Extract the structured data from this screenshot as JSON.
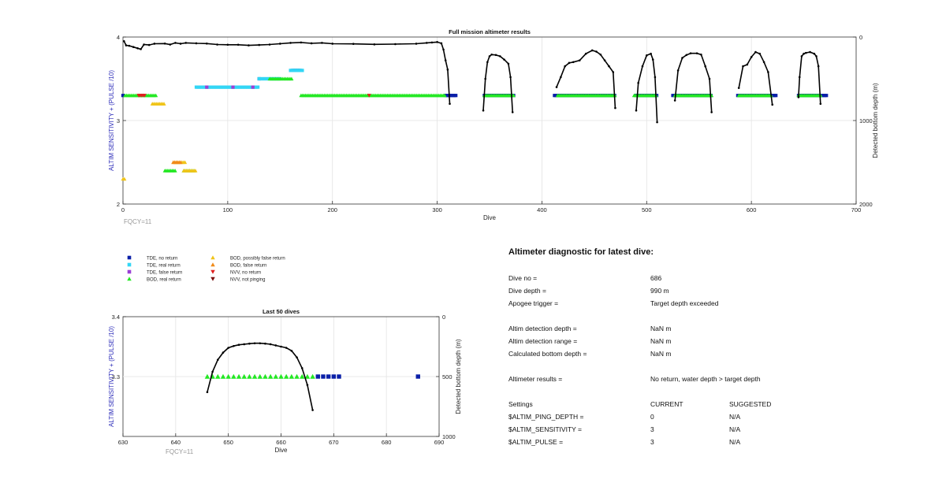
{
  "chart_data": [
    {
      "type": "scatter",
      "title": "Full mission altimeter results",
      "xlabel": "Dive",
      "ylabel": "ALTIM SENSITIVITY + (PULSE /10)",
      "y2label": "Detected bottom depth (m)",
      "xlim": [
        0,
        700
      ],
      "ylim": [
        2,
        4
      ],
      "y2lim": [
        0,
        2000
      ],
      "y2_reversed": true,
      "xticks": [
        "0",
        "100",
        "200",
        "300",
        "400",
        "500",
        "600",
        "700"
      ],
      "yticks": [
        "2",
        "3",
        "4"
      ],
      "y2ticks": [
        "0",
        "1000",
        "2000"
      ],
      "grid": true,
      "annotation": "FQCY=11",
      "series": [
        {
          "name": "TDE, no return",
          "color": "#0a1fa8",
          "marker": "square",
          "segments": [
            [
              0,
              1,
              3.3
            ],
            [
              130,
              131,
              3.5
            ],
            [
              162,
              170,
              3.6
            ],
            [
              308,
              318,
              3.3
            ],
            [
              345,
              374,
              3.3
            ],
            [
              412,
              470,
              3.3
            ],
            [
              490,
              510,
              3.3
            ],
            [
              525,
              562,
              3.3
            ],
            [
              587,
              624,
              3.3
            ],
            [
              645,
              672,
              3.3
            ]
          ]
        },
        {
          "name": "TDE, real return",
          "color": "#33d6f5",
          "marker": "square",
          "segments": [
            [
              70,
              130,
              3.4
            ],
            [
              130,
              150,
              3.5
            ],
            [
              160,
              172,
              3.6
            ]
          ]
        },
        {
          "name": "TDE, false return",
          "color": "#9a3fd6",
          "marker": "square",
          "segments": [
            [
              80,
              81,
              3.4
            ],
            [
              105,
              106,
              3.4
            ],
            [
              124,
              125,
              3.4
            ]
          ]
        },
        {
          "name": "BOD, real return",
          "color": "#23e823",
          "marker": "triangle",
          "segments": [
            [
              2,
              32,
              3.3
            ],
            [
              40,
              50,
              2.4
            ],
            [
              58,
              68,
              2.4
            ],
            [
              140,
              162,
              3.5
            ],
            [
              170,
              308,
              3.3
            ],
            [
              345,
              374,
              3.3
            ],
            [
              415,
              470,
              3.3
            ],
            [
              488,
              510,
              3.3
            ],
            [
              527,
              562,
              3.3
            ],
            [
              588,
              620,
              3.3
            ],
            [
              645,
              666,
              3.3
            ]
          ]
        },
        {
          "name": "BOD, possibly false return",
          "color": "#f0c419",
          "marker": "triangle",
          "segments": [
            [
              0,
              2,
              2.3
            ],
            [
              28,
              40,
              3.2
            ],
            [
              48,
              60,
              2.5
            ],
            [
              58,
              70,
              2.4
            ]
          ]
        },
        {
          "name": "BOD, false return",
          "color": "#f08a19",
          "marker": "triangle",
          "segments": [
            [
              48,
              55,
              2.5
            ]
          ]
        },
        {
          "name": "NVV, no return",
          "color": "#e01f1f",
          "marker": "triangle-down",
          "segments": [
            [
              15,
              21,
              3.3
            ],
            [
              235,
              236,
              3.3
            ]
          ]
        },
        {
          "name": "NVV, not pinging",
          "color": "#7a0e0e",
          "marker": "triangle-down",
          "segments": []
        }
      ],
      "depth_series": {
        "color": "#000000",
        "pieces": [
          {
            "x": [
              1,
              3,
              6,
              10,
              14,
              17,
              20,
              25,
              30,
              40,
              45,
              50,
              55,
              60,
              70,
              80,
              90,
              100,
              110,
              120,
              130,
              140,
              150,
              160,
              170,
              180,
              190,
              200,
              220,
              240,
              260,
              280,
              290,
              295,
              300,
              304,
              306,
              308,
              310,
              312
            ],
            "y": [
              50,
              100,
              105,
              120,
              135,
              145,
              90,
              95,
              80,
              78,
              90,
              70,
              80,
              70,
              75,
              78,
              90,
              92,
              92,
              100,
              95,
              90,
              80,
              70,
              65,
              75,
              70,
              80,
              82,
              88,
              85,
              80,
              70,
              65,
              60,
              75,
              150,
              280,
              390,
              800
            ]
          },
          {
            "x": [
              344,
              346,
              348,
              350,
              352,
              356,
              360,
              364,
              368,
              370,
              372
            ],
            "y": [
              880,
              500,
              300,
              230,
              210,
              215,
              230,
              270,
              320,
              480,
              900
            ]
          },
          {
            "x": [
              414,
              418,
              422,
              426,
              430,
              436,
              442,
              448,
              452,
              456,
              460,
              464,
              468,
              470
            ],
            "y": [
              600,
              480,
              350,
              310,
              300,
              280,
              200,
              160,
              175,
              210,
              280,
              350,
              420,
              850
            ]
          },
          {
            "x": [
              490,
              492,
              496,
              500,
              504,
              506,
              508,
              510
            ],
            "y": [
              880,
              550,
              350,
              220,
              200,
              270,
              480,
              1020
            ]
          },
          {
            "x": [
              527,
              530,
              534,
              538,
              542,
              548,
              552,
              556,
              560,
              562
            ],
            "y": [
              760,
              400,
              250,
              215,
              195,
              195,
              210,
              350,
              500,
              900
            ]
          },
          {
            "x": [
              588,
              592,
              596,
              600,
              604,
              608,
              612,
              616,
              620
            ],
            "y": [
              610,
              350,
              330,
              240,
              180,
              200,
              300,
              420,
              810
            ]
          },
          {
            "x": [
              645,
              646,
              648,
              650,
              652,
              656,
              660,
              662,
              664,
              666
            ],
            "y": [
              720,
              480,
              230,
              200,
              190,
              180,
              200,
              230,
              350,
              800
            ]
          }
        ]
      }
    },
    {
      "type": "scatter",
      "title": "Last 50 dives",
      "xlabel": "Dive",
      "ylabel": "ALTIM SENSITIVITY + (PULSE /10)",
      "y2label": "Detected bottom depth (m)",
      "xlim": [
        630,
        690
      ],
      "ylim": [
        3.2,
        3.4
      ],
      "y2lim": [
        0,
        1000
      ],
      "y2_reversed": true,
      "xticks": [
        "630",
        "640",
        "650",
        "660",
        "670",
        "680",
        "690"
      ],
      "yticks": [
        "3.3",
        "3.4"
      ],
      "y2ticks": [
        "0",
        "500",
        "1000"
      ],
      "grid": true,
      "annotation": "FQCY=11",
      "series": [
        {
          "name": "BOD, real return",
          "color": "#23e823",
          "marker": "triangle",
          "x": [
            646,
            647,
            648,
            649,
            650,
            651,
            652,
            653,
            654,
            655,
            656,
            657,
            658,
            659,
            660,
            661,
            662,
            663,
            664,
            665,
            666
          ],
          "y": 3.3
        },
        {
          "name": "TDE, no return",
          "color": "#0a1fa8",
          "marker": "square",
          "x": [
            667,
            668,
            669,
            670,
            671,
            686
          ],
          "y": 3.3
        }
      ],
      "depth_series": {
        "color": "#000000",
        "x": [
          646,
          647,
          648,
          649,
          650,
          651,
          652,
          653,
          654,
          655,
          656,
          657,
          658,
          659,
          660,
          661,
          662,
          663,
          664,
          665,
          666
        ],
        "y": [
          630,
          460,
          360,
          300,
          260,
          245,
          235,
          230,
          225,
          222,
          222,
          225,
          230,
          240,
          250,
          260,
          285,
          340,
          430,
          570,
          780
        ]
      }
    }
  ],
  "diagnostic": {
    "title": "Altimeter diagnostic for latest dive:",
    "rows": [
      {
        "label": "Dive no =",
        "value": "686"
      },
      {
        "label": "Dive depth =",
        "value": "990 m"
      },
      {
        "label": "Apogee trigger =",
        "value": "Target depth exceeded"
      },
      {
        "label": "Altim detection depth =",
        "value": "NaN m"
      },
      {
        "label": "Altim detection range =",
        "value": "NaN m"
      },
      {
        "label": "Calculated bottom depth =",
        "value": "NaN m"
      },
      {
        "label": "Altimeter results =",
        "value": "No return, water depth > target depth"
      }
    ],
    "settings_header": {
      "label": "Settings",
      "current": "CURRENT",
      "suggested": "SUGGESTED"
    },
    "settings": [
      {
        "name": "$ALTIM_PING_DEPTH =",
        "current": "0",
        "suggested": "N/A"
      },
      {
        "name": "$ALTIM_SENSITIVITY =",
        "current": "3",
        "suggested": "N/A"
      },
      {
        "name": "$ALTIM_PULSE =",
        "current": "3",
        "suggested": "N/A"
      }
    ]
  },
  "colors": {
    "axis_label_blue": "#2a2ab8",
    "grid": "#e3e3e3"
  }
}
